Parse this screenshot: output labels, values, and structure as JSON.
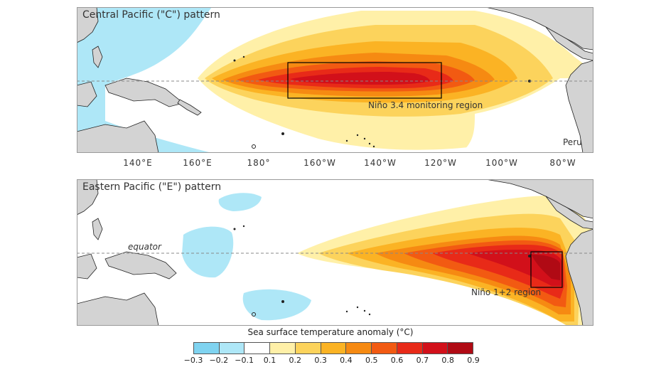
{
  "top_panel": {
    "title": "Central Pacific (\"C\") pattern",
    "region_label": "Niño 3.4 monitoring region",
    "country_label": "Peru"
  },
  "bottom_panel": {
    "title": "Eastern Pacific (\"E\") pattern",
    "equator_label": "equator",
    "region_label": "Niño 1+2 region"
  },
  "longitude_ticks": [
    "140°E",
    "160°E",
    "180°",
    "160°W",
    "140°W",
    "120°W",
    "100°W",
    "80°W"
  ],
  "legend": {
    "title": "Sea surface temperature anomaly (°C)",
    "tick_labels": [
      "−0.3",
      "−0.2",
      "−0.1",
      "0.1",
      "0.2",
      "0.3",
      "0.4",
      "0.5",
      "0.6",
      "0.7",
      "0.8",
      "0.9"
    ],
    "colors": [
      "#7fd3f0",
      "#aee7f7",
      "#ffffff",
      "#fff0a8",
      "#fcd35c",
      "#fbb324",
      "#f68a12",
      "#f25a12",
      "#e82a18",
      "#d2101a",
      "#b00a14"
    ]
  },
  "colors": {
    "land": "#d3d3d3",
    "coast": "#222222",
    "cool_anomaly": "#aee7f7",
    "box_outline": "#000000"
  },
  "icons": {
    "land": "land-mass",
    "box": "monitoring-region-box"
  }
}
